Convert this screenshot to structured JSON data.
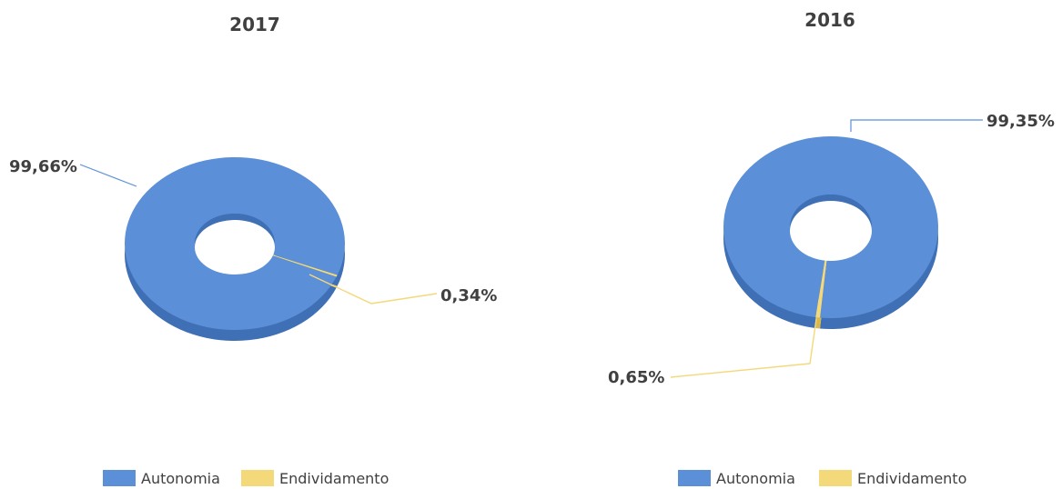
{
  "colors": {
    "autonomia": "#5b8fd8",
    "autonomia_dark": "#3f6fb5",
    "endividamento": "#f3d97a",
    "endividamento_dark": "#d9b94a",
    "text": "#404040"
  },
  "chart_data": [
    {
      "type": "pie",
      "title": "2017",
      "categories": [
        "Autonomia",
        "Endividamento"
      ],
      "values": [
        99.66,
        0.34
      ],
      "data_labels": [
        "99,66%",
        "0,34%"
      ],
      "legend": {
        "position": "bottom",
        "entries": [
          "Autonomia",
          "Endividamento"
        ]
      }
    },
    {
      "type": "pie",
      "title": "2016",
      "categories": [
        "Autonomia",
        "Endividamento"
      ],
      "values": [
        99.35,
        0.65
      ],
      "data_labels": [
        "99,35%",
        "0,65%"
      ],
      "legend": {
        "position": "bottom",
        "entries": [
          "Autonomia",
          "Endividamento"
        ]
      }
    }
  ]
}
